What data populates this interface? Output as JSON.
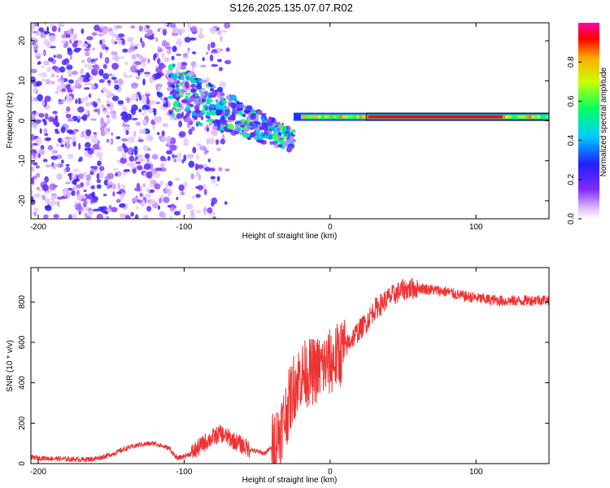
{
  "title": "S126.2025.135.07.07.R02",
  "colors": {
    "snr_line": "#ee3333",
    "frame": "#000000"
  },
  "chart_data": [
    {
      "type": "heatmap",
      "xlabel": "Height of straight line (km)",
      "ylabel": "Frequency (Hz)",
      "xlim": [
        -205,
        150
      ],
      "ylim": [
        -24.5,
        24.5
      ],
      "x_ticks": [
        -200,
        -100,
        0,
        100
      ],
      "y_ticks": [
        -20,
        -10,
        0,
        10,
        20
      ],
      "colorbar": {
        "label": "Normalized spectral amplitude",
        "range": [
          0,
          1
        ],
        "ticks": [
          0.0,
          0.2,
          0.4,
          0.6,
          0.8
        ],
        "colormap": [
          "#ffffff",
          "#d9b3ff",
          "#7f2aff",
          "#2020ff",
          "#00ccff",
          "#00ff66",
          "#ccff00",
          "#ffaa00",
          "#ff0000",
          "#ff00aa"
        ]
      },
      "features": [
        {
          "region": "noise",
          "x_range": [
            -205,
            -90
          ],
          "y_range": [
            -24.5,
            24.5
          ],
          "peak_amplitude": 0.25
        },
        {
          "region": "transition",
          "x_range": [
            -110,
            -25
          ],
          "centre_hz": [
            8,
            -5
          ],
          "peak_amplitude": 0.55
        },
        {
          "region": "carrier",
          "x_range": [
            -25,
            150
          ],
          "centre_hz": 1,
          "peak_amplitude": 0.95
        }
      ]
    },
    {
      "type": "line",
      "xlabel": "Height of straight line (km)",
      "ylabel": "SNR (10 * v/v)",
      "xlim": [
        -205,
        150
      ],
      "ylim": [
        0,
        970
      ],
      "x_ticks": [
        -200,
        -100,
        0,
        100
      ],
      "y_ticks": [
        0,
        200,
        400,
        600,
        800
      ],
      "series": [
        {
          "x": [
            -205,
            -190,
            -170,
            -160,
            -150,
            -140,
            -130,
            -120,
            -110,
            -105,
            -95,
            -85,
            -75,
            -65,
            -55,
            -45,
            -40,
            -35,
            -30,
            -25,
            -20,
            -15,
            -10,
            -5,
            0,
            5,
            10,
            15,
            20,
            25,
            30,
            40,
            50,
            60,
            70,
            80,
            90,
            100,
            110,
            120,
            130,
            140,
            150
          ],
          "y": [
            30,
            25,
            20,
            25,
            45,
            75,
            95,
            100,
            75,
            25,
            50,
            110,
            150,
            110,
            70,
            50,
            80,
            150,
            250,
            380,
            440,
            450,
            460,
            480,
            500,
            530,
            570,
            620,
            660,
            700,
            760,
            820,
            860,
            870,
            860,
            850,
            830,
            820,
            810,
            805,
            805,
            810,
            810
          ]
        }
      ]
    }
  ]
}
